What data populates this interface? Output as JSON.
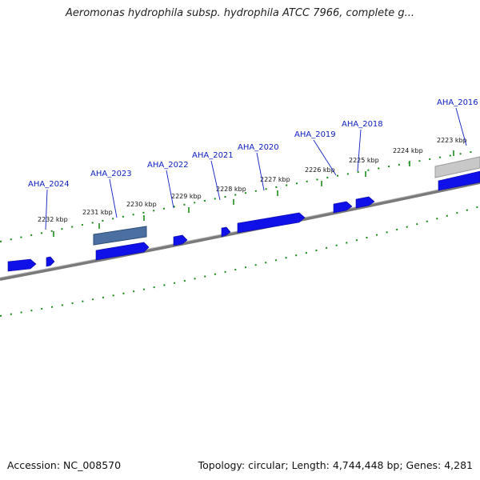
{
  "title": "Aeromonas hydrophila subsp. hydrophila ATCC 7966, complete g...",
  "footer": {
    "accession": "Accession: NC_008570",
    "summary": "Topology: circular; Length: 4,744,448 bp; Genes: 4,281"
  },
  "colors": {
    "gene": "#1010e8",
    "gene_highlight": "#4a6fa0",
    "backbone": "#7a7a7a",
    "tick": "#1a8a1a",
    "label": "#0f20c0"
  },
  "kbp_marks": [
    {
      "label": "2232 kbp",
      "kbp": 2232
    },
    {
      "label": "2231 kbp",
      "kbp": 2231
    },
    {
      "label": "2230 kbp",
      "kbp": 2230
    },
    {
      "label": "2229 kbp",
      "kbp": 2229
    },
    {
      "label": "2228 kbp",
      "kbp": 2228
    },
    {
      "label": "2227 kbp",
      "kbp": 2227
    },
    {
      "label": "2226 kbp",
      "kbp": 2226
    },
    {
      "label": "2225 kbp",
      "kbp": 2225
    },
    {
      "label": "2224 kbp",
      "kbp": 2224
    },
    {
      "label": "2223 kbp",
      "kbp": 2223
    }
  ],
  "gene_labels": [
    {
      "label": "AHA_2024"
    },
    {
      "label": "AHA_2023"
    },
    {
      "label": "AHA_2022"
    },
    {
      "label": "AHA_2021"
    },
    {
      "label": "AHA_2020"
    },
    {
      "label": "AHA_2019"
    },
    {
      "label": "AHA_2018"
    },
    {
      "label": "AHA_2016"
    }
  ]
}
